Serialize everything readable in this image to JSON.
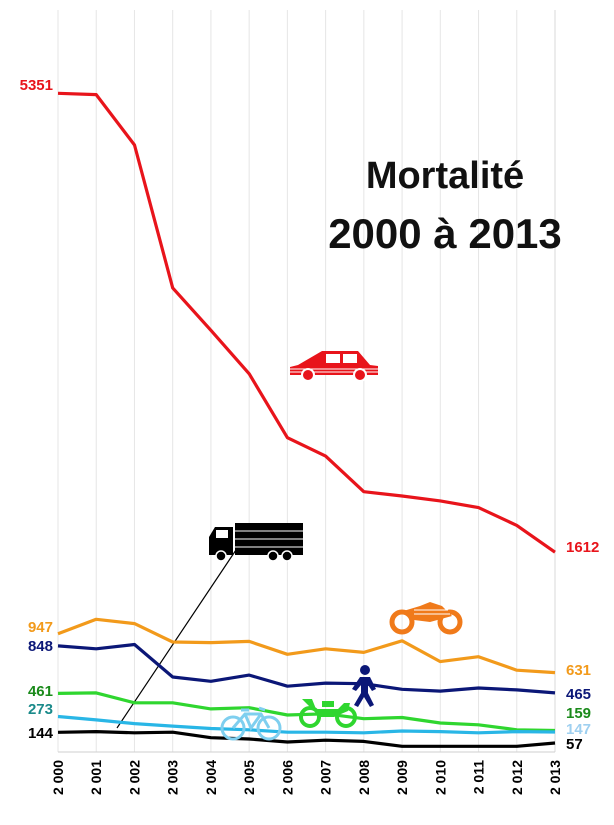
{
  "title_line1": "Mortalité",
  "title_line2": "2000 à 2013",
  "chart_data": {
    "type": "line",
    "x": [
      "2 000",
      "2 001",
      "2 002",
      "2 003",
      "2 004",
      "2 005",
      "2 006",
      "2 007",
      "2 008",
      "2 009",
      "2 010",
      "2 011",
      "2 012",
      "2 013"
    ],
    "ylim": [
      0,
      5500
    ],
    "grid": "vertical",
    "series": [
      {
        "icon": "car-icon",
        "color": "#e8141b",
        "start_label": "5351",
        "end_label": "1612",
        "values": [
          5351,
          5340,
          4930,
          3765,
          3420,
          3065,
          2545,
          2395,
          2105,
          2070,
          2030,
          1975,
          1830,
          1612
        ]
      },
      {
        "icon": "motorcycle-icon",
        "color": "#f29a1b",
        "start_label": "947",
        "end_label": "631",
        "values": [
          947,
          1065,
          1030,
          880,
          875,
          885,
          780,
          825,
          795,
          890,
          720,
          760,
          650,
          631
        ]
      },
      {
        "icon": "pedestrian-icon",
        "color": "#0b1777",
        "start_label": "848",
        "end_label": "465",
        "values": [
          848,
          825,
          860,
          595,
          560,
          610,
          520,
          545,
          540,
          495,
          480,
          505,
          490,
          465
        ]
      },
      {
        "icon": "moped-icon",
        "color": "#2fd62f",
        "start_label": "461",
        "end_label": "159",
        "values": [
          461,
          465,
          385,
          385,
          335,
          345,
          285,
          295,
          255,
          265,
          220,
          205,
          165,
          159
        ]
      },
      {
        "icon": "bicycle-icon",
        "color": "#29b6e6",
        "start_label": "273",
        "end_label": "147",
        "values": [
          273,
          245,
          215,
          195,
          175,
          165,
          145,
          145,
          140,
          155,
          150,
          140,
          150,
          147
        ]
      },
      {
        "icon": "truck-icon",
        "color": "#000000",
        "start_label": "144",
        "end_label": "57",
        "values": [
          144,
          150,
          140,
          145,
          100,
          90,
          65,
          80,
          70,
          30,
          30,
          30,
          30,
          57
        ]
      }
    ],
    "start_label_colors": [
      "#e8141b",
      "#f29a1b",
      "#0b1777",
      "#1a8a1a",
      "#1a8a8a",
      "#000000"
    ],
    "end_label_colors": [
      "#e8141b",
      "#f29a1b",
      "#0b1777",
      "#1a8a1a",
      "#9fd0f0",
      "#000000"
    ]
  }
}
